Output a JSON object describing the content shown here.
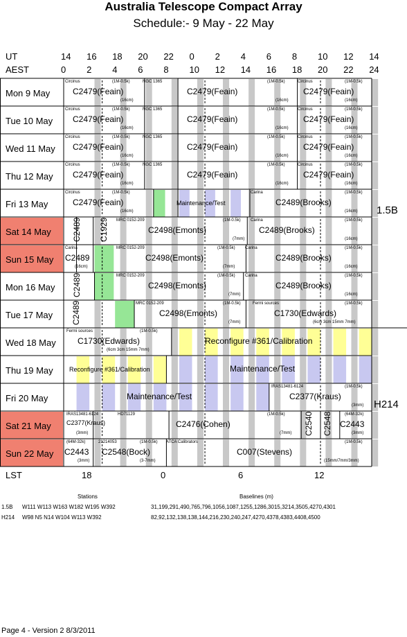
{
  "header": {
    "title": "Australia Telescope Compact Array",
    "subtitle": "Schedule:- 9  May - 22 May",
    "ut_label": "UT",
    "aest_label": "AEST",
    "ut_ticks": [
      "14",
      "16",
      "18",
      "20",
      "22",
      "0",
      "2",
      "4",
      "6",
      "8",
      "10",
      "12",
      "14"
    ],
    "aest_ticks": [
      "0",
      "2",
      "4",
      "6",
      "8",
      "10",
      "12",
      "14",
      "16",
      "18",
      "20",
      "22",
      "24"
    ]
  },
  "days": [
    {
      "label": "Mon  9  May",
      "weekend": false
    },
    {
      "label": "Tue  10 May",
      "weekend": false
    },
    {
      "label": "Wed 11 May",
      "weekend": false
    },
    {
      "label": "Thu  12 May",
      "weekend": false
    },
    {
      "label": "Fri    13 May",
      "weekend": false
    },
    {
      "label": "Sat   14 May",
      "weekend": true
    },
    {
      "label": "Sun  15 May",
      "weekend": true
    },
    {
      "label": "Mon  16 May",
      "weekend": false
    },
    {
      "label": "Tue   17 May",
      "weekend": false
    },
    {
      "label": "Wed 18 May",
      "weekend": false
    },
    {
      "label": "Thu  19 May",
      "weekend": false
    },
    {
      "label": "Fri    20 May",
      "weekend": false
    },
    {
      "label": "Sat   21 May",
      "weekend": true
    },
    {
      "label": "Sun  22 May",
      "weekend": true
    }
  ],
  "rows": [
    {
      "texts": [
        {
          "t": "Circinus",
          "k": "tag"
        },
        {
          "t": "(1M-0.5k)",
          "k": "tag"
        },
        {
          "t": "NGC 1365",
          "k": "tag"
        },
        {
          "t": "(1M-0.5k)",
          "k": "tag"
        },
        {
          "t": "Circinus",
          "k": "tag"
        },
        {
          "t": "(1M-0.5k)",
          "k": "tag"
        },
        {
          "t": "C2479(Feain)",
          "k": "prog"
        },
        {
          "t": "C2479(Feain)",
          "k": "prog"
        },
        {
          "t": "C2479(Feain)",
          "k": "prog"
        },
        {
          "t": "(16cm)",
          "k": "tag"
        },
        {
          "t": "(16cm)",
          "k": "tag"
        },
        {
          "t": "(16cm)",
          "k": "tag"
        }
      ]
    },
    {
      "texts": [
        {
          "t": "Circinus",
          "k": "tag"
        },
        {
          "t": "(1M-0.5k)",
          "k": "tag"
        },
        {
          "t": "NGC 1365",
          "k": "tag"
        },
        {
          "t": "(1M-0.5k)",
          "k": "tag"
        },
        {
          "t": "Circinus",
          "k": "tag"
        },
        {
          "t": "(1M-0.5k)",
          "k": "tag"
        },
        {
          "t": "C2479(Feain)",
          "k": "prog"
        },
        {
          "t": "C2479(Feain)",
          "k": "prog"
        },
        {
          "t": "C2479(Feain)",
          "k": "prog"
        },
        {
          "t": "(16cm)",
          "k": "tag"
        },
        {
          "t": "(16cm)",
          "k": "tag"
        },
        {
          "t": "(16cm)",
          "k": "tag"
        }
      ]
    },
    {
      "texts": [
        {
          "t": "Circinus",
          "k": "tag"
        },
        {
          "t": "(1M-0.5k)",
          "k": "tag"
        },
        {
          "t": "NGC 1365",
          "k": "tag"
        },
        {
          "t": "(1M-0.5k)",
          "k": "tag"
        },
        {
          "t": "Circinus",
          "k": "tag"
        },
        {
          "t": "(1M-0.5k)",
          "k": "tag"
        },
        {
          "t": "C2479(Feain)",
          "k": "prog"
        },
        {
          "t": "C2479(Feain)",
          "k": "prog"
        },
        {
          "t": "C2479(Feain)",
          "k": "prog"
        },
        {
          "t": "(16cm)",
          "k": "tag"
        },
        {
          "t": "(16cm)",
          "k": "tag"
        },
        {
          "t": "(16cm)",
          "k": "tag"
        }
      ]
    },
    {
      "texts": [
        {
          "t": "Circinus",
          "k": "tag"
        },
        {
          "t": "(1M-0.5k)",
          "k": "tag"
        },
        {
          "t": "NGC 1365",
          "k": "tag"
        },
        {
          "t": "(1M-0.5k)",
          "k": "tag"
        },
        {
          "t": "Circinus",
          "k": "tag"
        },
        {
          "t": "(1M-0.5k)",
          "k": "tag"
        },
        {
          "t": "C2479(Feain)",
          "k": "prog"
        },
        {
          "t": "C2479(Feain)",
          "k": "prog"
        },
        {
          "t": "C2479(Feain)",
          "k": "prog"
        },
        {
          "t": "(16cm)",
          "k": "tag"
        },
        {
          "t": "(16cm)",
          "k": "tag"
        },
        {
          "t": "(16cm)",
          "k": "tag"
        }
      ]
    },
    {
      "texts": [
        {
          "t": "Circinus",
          "k": "tag"
        },
        {
          "t": "(1M-0.5k)",
          "k": "tag"
        },
        {
          "t": "Carina",
          "k": "tag"
        },
        {
          "t": "(1M-0.5k)",
          "k": "tag"
        },
        {
          "t": "C2479(Feain)",
          "k": "prog"
        },
        {
          "t": "Maintenance/Test",
          "k": "small"
        },
        {
          "t": "C2489(Brooks)",
          "k": "prog"
        },
        {
          "t": "(16cm)",
          "k": "tag"
        },
        {
          "t": "(16cm)",
          "k": "tag"
        }
      ]
    },
    {
      "texts": [
        {
          "t": "MRC 0152-209",
          "k": "tag"
        },
        {
          "t": "(1M-0.5k)",
          "k": "tag"
        },
        {
          "t": "Carina",
          "k": "tag"
        },
        {
          "t": "(1M-0.5k)",
          "k": "tag"
        },
        {
          "t": "C2498(Emonts)",
          "k": "prog"
        },
        {
          "t": "C2489(Brooks)",
          "k": "prog"
        },
        {
          "t": "(7mm)",
          "k": "tag"
        },
        {
          "t": "(16cm)",
          "k": "tag"
        }
      ]
    },
    {
      "texts": [
        {
          "t": "Carina",
          "k": "tag"
        },
        {
          "t": "MRC 0152-209",
          "k": "tag"
        },
        {
          "t": "(1M-0.5k)",
          "k": "tag"
        },
        {
          "t": "Carina",
          "k": "tag"
        },
        {
          "t": "(1M-0.5k)",
          "k": "tag"
        },
        {
          "t": "C2489",
          "k": "prog"
        },
        {
          "t": "C2498(Emonts)",
          "k": "prog"
        },
        {
          "t": "C2489(Brooks)",
          "k": "prog"
        },
        {
          "t": "(16cm)",
          "k": "tag"
        },
        {
          "t": "(7mm)",
          "k": "tag"
        },
        {
          "t": "(16cm)",
          "k": "tag"
        }
      ]
    },
    {
      "texts": [
        {
          "t": "MRC 0152-209",
          "k": "tag"
        },
        {
          "t": "(1M-0.5k)",
          "k": "tag"
        },
        {
          "t": "Carina",
          "k": "tag"
        },
        {
          "t": "(1M-0.5k)",
          "k": "tag"
        },
        {
          "t": "C2498(Emonts)",
          "k": "prog"
        },
        {
          "t": "C2489(Brooks)",
          "k": "prog"
        },
        {
          "t": "(7mm)",
          "k": "tag"
        },
        {
          "t": "(16cm)",
          "k": "tag"
        }
      ]
    },
    {
      "texts": [
        {
          "t": "MRC 0152-209",
          "k": "tag"
        },
        {
          "t": "(1M-0.5k)",
          "k": "tag"
        },
        {
          "t": "Fermi sources",
          "k": "tag"
        },
        {
          "t": "(1M-0.5k)",
          "k": "tag"
        },
        {
          "t": "C2498(Emonts)",
          "k": "prog"
        },
        {
          "t": "C1730(Edwards)",
          "k": "prog"
        },
        {
          "t": "(7mm)",
          "k": "tag"
        },
        {
          "t": "(6cm 3cm 15mm 7mm)",
          "k": "tag"
        }
      ]
    },
    {
      "texts": [
        {
          "t": "Fermi sources",
          "k": "tag"
        },
        {
          "t": "(1M-0.5k)",
          "k": "tag"
        },
        {
          "t": "C1730(Edwards)",
          "k": "prog"
        },
        {
          "t": "Reconfigure #361/Calibration",
          "k": "prog"
        },
        {
          "t": "(6cm 3cm 15mm 7mm)",
          "k": "tag"
        }
      ]
    },
    {
      "texts": [
        {
          "t": "Reconfigure #361/Calibration",
          "k": "small"
        },
        {
          "t": "Maintenance/Test",
          "k": "prog"
        }
      ]
    },
    {
      "texts": [
        {
          "t": "IRAS13481-6124",
          "k": "tag"
        },
        {
          "t": "(1M-0.5k)",
          "k": "tag"
        },
        {
          "t": "Maintenance/Test",
          "k": "prog"
        },
        {
          "t": "C2377(Kraus)",
          "k": "prog"
        },
        {
          "t": "(3mm)",
          "k": "tag"
        }
      ]
    },
    {
      "texts": [
        {
          "t": "IRAS13481-6124",
          "k": "tag"
        },
        {
          "t": "HD71129",
          "k": "tag"
        },
        {
          "t": "(1M-0.5k)",
          "k": "tag"
        },
        {
          "t": "(64M-32k)",
          "k": "tag"
        },
        {
          "t": "C2377(Kraus)",
          "k": "small"
        },
        {
          "t": "C2476(Cohen)",
          "k": "prog"
        },
        {
          "t": "C2443",
          "k": "prog"
        },
        {
          "t": "(3mm)",
          "k": "tag"
        },
        {
          "t": "(7mm)",
          "k": "tag"
        },
        {
          "t": "(3mm)",
          "k": "tag"
        }
      ]
    },
    {
      "texts": [
        {
          "t": "(64M-32k)",
          "k": "tag"
        },
        {
          "t": "21214053",
          "k": "tag"
        },
        {
          "t": "(1M-0.5k)",
          "k": "tag"
        },
        {
          "t": "ATCA Calibrators",
          "k": "tag"
        },
        {
          "t": "(1M-0.5k)",
          "k": "tag"
        },
        {
          "t": "C2443",
          "k": "prog"
        },
        {
          "t": "C2548(Bock)",
          "k": "prog"
        },
        {
          "t": "C007(Stevens)",
          "k": "prog"
        },
        {
          "t": "(3mm)",
          "k": "tag"
        },
        {
          "t": "(3-7mm)",
          "k": "tag"
        },
        {
          "t": "(15mm/7mm/3mm)",
          "k": "tag"
        }
      ]
    }
  ],
  "vertical_labels": [
    "C2489",
    "C1929",
    "C2489",
    "C2489",
    "C2540",
    "C2548"
  ],
  "configs": [
    "1.5B",
    "H214"
  ],
  "lst": {
    "label": "LST",
    "ticks": [
      "18",
      "0",
      "6",
      "12"
    ]
  },
  "stations": {
    "header": "Stations",
    "baselines_header": "Baselines (m)",
    "rows": [
      {
        "config": "1.5B",
        "stations": "W111 W113 W163 W182 W195 W392",
        "baselines": "31,199,291,490,765,796,1056,1087,1255,1286,3015,3214,3505,4270,4301"
      },
      {
        "config": "H214",
        "stations": "W98 N5 N14 W104 W113 W392",
        "baselines": "82,92,132,138,138,144,216,230,240,247,4270,4378,4383,4408,4500"
      }
    ]
  },
  "footer": "Page 4 - Version 2  8/3/2011",
  "colors": {
    "weekend": "#f08070",
    "grey": "#c8c8c8",
    "blue": "#c8c8f0",
    "yellow": "#ffff96",
    "green": "#96e696"
  }
}
